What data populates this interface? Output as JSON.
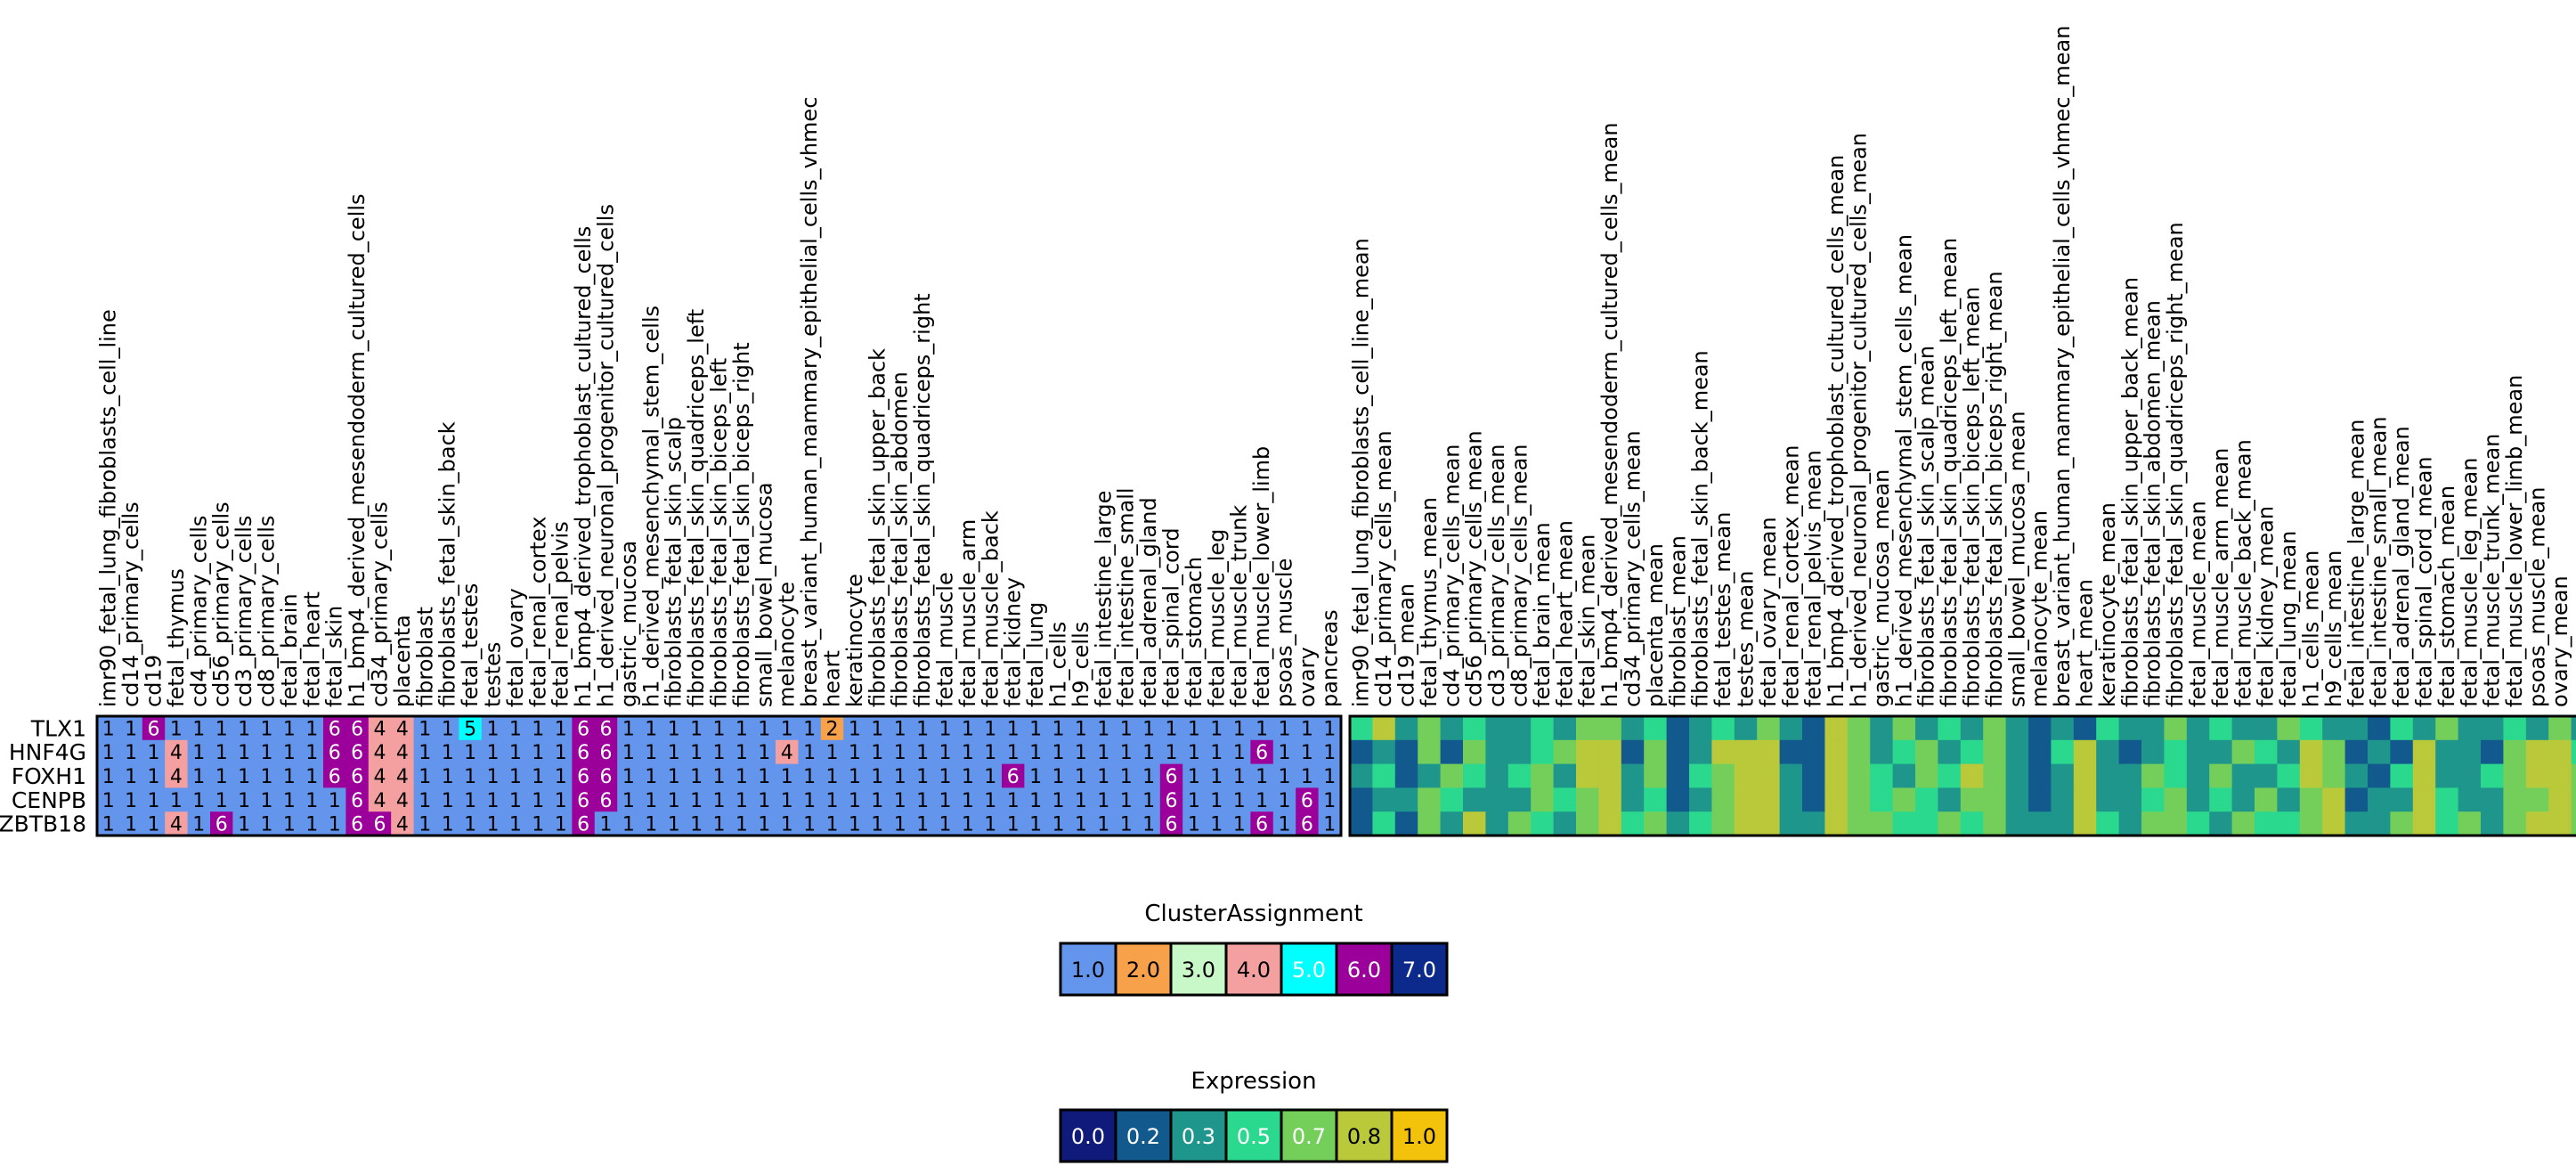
{
  "chart_data": [
    {
      "type": "heatmap",
      "panel": "cluster",
      "rows": [
        "TLX1",
        "HNF4G",
        "FOXH1",
        "CENPB",
        "ZBTB18"
      ],
      "columns": [
        "imr90_fetal_lung_fibroblasts_cell_line",
        "cd14_primary_cells",
        "cd19",
        "fetal_thymus",
        "cd4_primary_cells",
        "cd56_primary_cells",
        "cd3_primary_cells",
        "cd8_primary_cells",
        "fetal_brain",
        "fetal_heart",
        "fetal_skin",
        "h1_bmp4_derived_mesendoderm_cultured_cells",
        "cd34_primary_cells",
        "placenta",
        "fibroblast",
        "fibroblasts_fetal_skin_back",
        "fetal_testes",
        "testes",
        "fetal_ovary",
        "fetal_renal_cortex",
        "fetal_renal_pelvis",
        "h1_bmp4_derived_trophoblast_cultured_cells",
        "h1_derived_neuronal_progenitor_cultured_cells",
        "gastric_mucosa",
        "h1_derived_mesenchymal_stem_cells",
        "fibroblasts_fetal_skin_scalp",
        "fibroblasts_fetal_skin_quadriceps_left",
        "fibroblasts_fetal_skin_biceps_left",
        "fibroblasts_fetal_skin_biceps_right",
        "small_bowel_mucosa",
        "melanocyte",
        "breast_variant_human_mammary_epithelial_cells_vhmec",
        "heart",
        "keratinocyte",
        "fibroblasts_fetal_skin_upper_back",
        "fibroblasts_fetal_skin_abdomen",
        "fibroblasts_fetal_skin_quadriceps_right",
        "fetal_muscle",
        "fetal_muscle_arm",
        "fetal_muscle_back",
        "fetal_kidney",
        "fetal_lung",
        "h1_cells",
        "h9_cells",
        "fetal_intestine_large",
        "fetal_intestine_small",
        "fetal_adrenal_gland",
        "fetal_spinal_cord",
        "fetal_stomach",
        "fetal_muscle_leg",
        "fetal_muscle_trunk",
        "fetal_muscle_lower_limb",
        "psoas_muscle",
        "ovary",
        "pancreas"
      ],
      "values": [
        [
          1,
          1,
          6,
          1,
          1,
          1,
          1,
          1,
          1,
          1,
          6,
          6,
          4,
          4,
          1,
          1,
          5,
          1,
          1,
          1,
          1,
          6,
          6,
          1,
          1,
          1,
          1,
          1,
          1,
          1,
          1,
          1,
          2,
          1,
          1,
          1,
          1,
          1,
          1,
          1,
          1,
          1,
          1,
          1,
          1,
          1,
          1,
          1,
          1,
          1,
          1,
          1,
          1,
          1,
          1
        ],
        [
          1,
          1,
          1,
          4,
          1,
          1,
          1,
          1,
          1,
          1,
          6,
          6,
          4,
          4,
          1,
          1,
          1,
          1,
          1,
          1,
          1,
          6,
          6,
          1,
          1,
          1,
          1,
          1,
          1,
          1,
          4,
          1,
          1,
          1,
          1,
          1,
          1,
          1,
          1,
          1,
          1,
          1,
          1,
          1,
          1,
          1,
          1,
          1,
          1,
          1,
          1,
          6,
          1,
          1,
          1
        ],
        [
          1,
          1,
          1,
          4,
          1,
          1,
          1,
          1,
          1,
          1,
          6,
          6,
          4,
          4,
          1,
          1,
          1,
          1,
          1,
          1,
          1,
          6,
          6,
          1,
          1,
          1,
          1,
          1,
          1,
          1,
          1,
          1,
          1,
          1,
          1,
          1,
          1,
          1,
          1,
          1,
          6,
          1,
          1,
          1,
          1,
          1,
          1,
          6,
          1,
          1,
          1,
          1,
          1,
          1,
          1
        ],
        [
          1,
          1,
          1,
          1,
          1,
          1,
          1,
          1,
          1,
          1,
          1,
          6,
          4,
          4,
          1,
          1,
          1,
          1,
          1,
          1,
          1,
          6,
          6,
          1,
          1,
          1,
          1,
          1,
          1,
          1,
          1,
          1,
          1,
          1,
          1,
          1,
          1,
          1,
          1,
          1,
          1,
          1,
          1,
          1,
          1,
          1,
          1,
          6,
          1,
          1,
          1,
          1,
          1,
          6,
          1
        ],
        [
          1,
          1,
          1,
          4,
          1,
          6,
          1,
          1,
          1,
          1,
          1,
          6,
          6,
          4,
          1,
          1,
          1,
          1,
          1,
          1,
          1,
          6,
          1,
          1,
          1,
          1,
          1,
          1,
          1,
          1,
          1,
          1,
          1,
          1,
          1,
          1,
          1,
          1,
          1,
          1,
          1,
          1,
          1,
          1,
          1,
          1,
          1,
          6,
          1,
          1,
          1,
          6,
          1,
          6,
          1
        ]
      ],
      "legend": {
        "title": "ClusterAssignment",
        "levels": [
          "1.0",
          "2.0",
          "3.0",
          "4.0",
          "5.0",
          "6.0",
          "7.0"
        ],
        "colors": [
          "#6495ed",
          "#f7a14a",
          "#c8f7c8",
          "#f4a0a0",
          "#00ffff",
          "#9b009b",
          "#0b2a8c"
        ]
      }
    },
    {
      "type": "heatmap",
      "panel": "expression",
      "rows": [
        "TLX1",
        "HNF4G",
        "FOXH1",
        "CENPB",
        "ZBTB18"
      ],
      "columns": [
        "imr90_fetal_lung_fibroblasts_cell_line_mean",
        "cd14_primary_cells_mean",
        "cd19_mean",
        "fetal_thymus_mean",
        "cd4_primary_cells_mean",
        "cd56_primary_cells_mean",
        "cd3_primary_cells_mean",
        "cd8_primary_cells_mean",
        "fetal_brain_mean",
        "fetal_heart_mean",
        "fetal_skin_mean",
        "h1_bmp4_derived_mesendoderm_cultured_cells_mean",
        "cd34_primary_cells_mean",
        "placenta_mean",
        "fibroblast_mean",
        "fibroblasts_fetal_skin_back_mean",
        "fetal_testes_mean",
        "testes_mean",
        "fetal_ovary_mean",
        "fetal_renal_cortex_mean",
        "fetal_renal_pelvis_mean",
        "h1_bmp4_derived_trophoblast_cultured_cells_mean",
        "h1_derived_neuronal_progenitor_cultured_cells_mean",
        "gastric_mucosa_mean",
        "h1_derived_mesenchymal_stem_cells_mean",
        "fibroblasts_fetal_skin_scalp_mean",
        "fibroblasts_fetal_skin_quadriceps_left_mean",
        "fibroblasts_fetal_skin_biceps_left_mean",
        "fibroblasts_fetal_skin_biceps_right_mean",
        "small_bowel_mucosa_mean",
        "melanocyte_mean",
        "breast_variant_human_mammary_epithelial_cells_vhmec_mean",
        "heart_mean",
        "keratinocyte_mean",
        "fibroblasts_fetal_skin_upper_back_mean",
        "fibroblasts_fetal_skin_abdomen_mean",
        "fibroblasts_fetal_skin_quadriceps_right_mean",
        "fetal_muscle_mean",
        "fetal_muscle_arm_mean",
        "fetal_muscle_back_mean",
        "fetal_kidney_mean",
        "fetal_lung_mean",
        "h1_cells_mean",
        "h9_cells_mean",
        "fetal_intestine_large_mean",
        "fetal_intestine_small_mean",
        "fetal_adrenal_gland_mean",
        "fetal_spinal_cord_mean",
        "fetal_stomach_mean",
        "fetal_muscle_leg_mean",
        "fetal_muscle_trunk_mean",
        "fetal_muscle_lower_limb_mean",
        "psoas_muscle_mean",
        "ovary_mean",
        "pancreas_mean"
      ],
      "values": [
        [
          0.5,
          0.8,
          0.4,
          0.6,
          0.3,
          0.5,
          0.4,
          0.3,
          0.5,
          0.4,
          0.6,
          0.7,
          0.3,
          0.5,
          0.2,
          0.4,
          0.5,
          0.3,
          0.6,
          0.4,
          0.2,
          0.8,
          0.6,
          0.3,
          0.6,
          0.4,
          0.5,
          0.3,
          0.6,
          0.4,
          0.2,
          0.3,
          0.1,
          0.5,
          0.3,
          0.4,
          0.6,
          0.3,
          0.5,
          0.4,
          0.3,
          0.6,
          0.5,
          0.4,
          0.3,
          0.2,
          0.5,
          0.3,
          0.6,
          0.4,
          0.3,
          0.5,
          0.4,
          0.6,
          0.3
        ],
        [
          0.2,
          0.4,
          0.1,
          0.6,
          0.2,
          0.7,
          0.4,
          0.3,
          0.5,
          0.7,
          0.8,
          0.9,
          0.2,
          0.6,
          0.1,
          0.3,
          0.8,
          0.9,
          0.9,
          0.2,
          0.1,
          0.8,
          0.7,
          0.4,
          0.5,
          0.6,
          0.3,
          0.5,
          0.7,
          0.3,
          0.1,
          0.5,
          0.9,
          0.4,
          0.2,
          0.3,
          0.5,
          0.4,
          0.3,
          0.6,
          0.5,
          0.3,
          0.8,
          0.7,
          0.2,
          0.3,
          0.2,
          0.9,
          0.3,
          0.4,
          0.2,
          0.6,
          0.8,
          0.9,
          0.5
        ],
        [
          0.3,
          0.5,
          0.2,
          0.4,
          0.6,
          0.5,
          0.3,
          0.5,
          0.6,
          0.4,
          0.8,
          0.9,
          0.4,
          0.6,
          0.2,
          0.5,
          0.7,
          0.9,
          0.8,
          0.3,
          0.2,
          0.8,
          0.7,
          0.5,
          0.4,
          0.6,
          0.5,
          0.8,
          0.6,
          0.3,
          0.2,
          0.4,
          0.9,
          0.3,
          0.4,
          0.6,
          0.5,
          0.3,
          0.6,
          0.4,
          0.3,
          0.5,
          0.8,
          0.7,
          0.3,
          0.2,
          0.5,
          0.9,
          0.4,
          0.3,
          0.5,
          0.6,
          0.8,
          0.9,
          0.6
        ],
        [
          0.2,
          0.4,
          0.3,
          0.6,
          0.5,
          0.4,
          0.3,
          0.4,
          0.6,
          0.5,
          0.7,
          0.9,
          0.3,
          0.5,
          0.1,
          0.4,
          0.6,
          0.8,
          0.8,
          0.3,
          0.2,
          0.8,
          0.7,
          0.5,
          0.6,
          0.5,
          0.4,
          0.6,
          0.7,
          0.4,
          0.1,
          0.3,
          0.8,
          0.4,
          0.3,
          0.5,
          0.6,
          0.4,
          0.5,
          0.3,
          0.6,
          0.4,
          0.7,
          0.8,
          0.2,
          0.4,
          0.3,
          0.9,
          0.5,
          0.3,
          0.4,
          0.6,
          0.7,
          0.8,
          0.7
        ],
        [
          0.1,
          0.5,
          0.2,
          0.6,
          0.4,
          0.8,
          0.3,
          0.6,
          0.5,
          0.4,
          0.7,
          0.8,
          0.5,
          0.6,
          0.3,
          0.5,
          0.7,
          0.9,
          0.9,
          0.4,
          0.3,
          0.8,
          0.7,
          0.6,
          0.5,
          0.5,
          0.6,
          0.5,
          0.6,
          0.4,
          0.3,
          0.4,
          0.8,
          0.5,
          0.4,
          0.6,
          0.7,
          0.5,
          0.4,
          0.6,
          0.5,
          0.5,
          0.7,
          0.8,
          0.4,
          0.3,
          0.6,
          0.8,
          0.5,
          0.6,
          0.4,
          0.7,
          0.9,
          0.9,
          0.7
        ]
      ],
      "legend": {
        "title": "Expression",
        "levels": [
          "0.0",
          "0.2",
          "0.3",
          "0.5",
          "0.7",
          "0.8",
          "1.0"
        ],
        "colors": [
          "#0f1a7a",
          "#125a8e",
          "#1f968b",
          "#2bd98e",
          "#74cf5a",
          "#b9c93a",
          "#f3c20a"
        ]
      }
    }
  ]
}
